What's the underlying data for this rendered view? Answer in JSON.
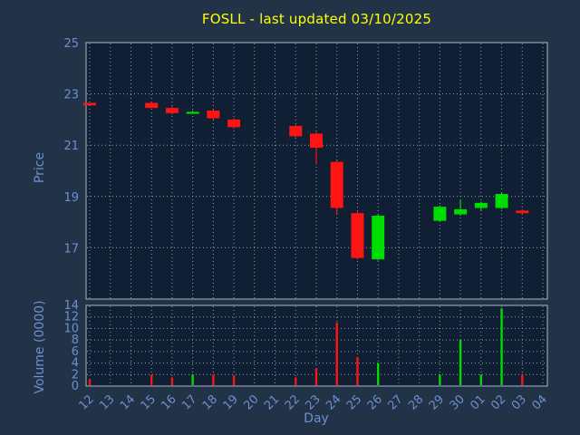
{
  "title": "FOSLL - last updated 03/10/2025",
  "colors": {
    "background": "#223348",
    "plot_bg": "#101f33",
    "title": "#ffff00",
    "axis_label": "#6d8fcf",
    "tick_label": "#6d8fcf",
    "grid": "#8fa0b3",
    "border": "#aab8c6",
    "up": "#00db00",
    "down": "#ff1414"
  },
  "chart_data": {
    "type": "candlestick+volume",
    "title": "FOSLL - last updated 03/10/2025",
    "xlabel": "Day",
    "price_ylabel": "Price",
    "volume_ylabel": "Volume (0000)",
    "x_ticks": [
      "12",
      "13",
      "14",
      "15",
      "16",
      "17",
      "18",
      "19",
      "20",
      "21",
      "22",
      "23",
      "24",
      "25",
      "26",
      "27",
      "28",
      "29",
      "30",
      "01",
      "02",
      "03",
      "04"
    ],
    "price_ticks": [
      25,
      23,
      21,
      19,
      17
    ],
    "price_range": [
      15,
      25
    ],
    "volume_ticks": [
      14,
      12,
      10,
      8,
      6,
      4,
      2,
      0
    ],
    "volume_range": [
      0,
      14
    ],
    "grid": true,
    "candles": [
      {
        "day": "12",
        "open": 22.65,
        "close": 22.55,
        "high": 22.65,
        "low": 22.55,
        "dir": "down",
        "volume": 1.2
      },
      {
        "day": "15",
        "open": 22.65,
        "close": 22.45,
        "high": 22.7,
        "low": 22.45,
        "dir": "down",
        "volume": 2.0
      },
      {
        "day": "16",
        "open": 22.45,
        "close": 22.25,
        "high": 22.5,
        "low": 22.2,
        "dir": "down",
        "volume": 1.5
      },
      {
        "day": "17",
        "open": 22.3,
        "close": 22.3,
        "high": 22.35,
        "low": 22.25,
        "dir": "up",
        "volume": 2.0
      },
      {
        "day": "18",
        "open": 22.35,
        "close": 22.05,
        "high": 22.4,
        "low": 22.0,
        "dir": "down",
        "volume": 2.0
      },
      {
        "day": "19",
        "open": 22.0,
        "close": 21.7,
        "high": 22.05,
        "low": 21.65,
        "dir": "down",
        "volume": 1.8
      },
      {
        "day": "22",
        "open": 21.75,
        "close": 21.35,
        "high": 21.8,
        "low": 21.3,
        "dir": "down",
        "volume": 1.5
      },
      {
        "day": "23",
        "open": 21.45,
        "close": 20.9,
        "high": 21.5,
        "low": 20.25,
        "dir": "down",
        "volume": 3.0
      },
      {
        "day": "24",
        "open": 20.35,
        "close": 18.55,
        "high": 20.4,
        "low": 18.3,
        "dir": "down",
        "volume": 11.0
      },
      {
        "day": "25",
        "open": 18.35,
        "close": 16.6,
        "high": 18.45,
        "low": 16.55,
        "dir": "down",
        "volume": 5.0
      },
      {
        "day": "26",
        "open": 16.55,
        "close": 18.25,
        "high": 18.3,
        "low": 16.5,
        "dir": "up",
        "volume": 4.0
      },
      {
        "day": "29",
        "open": 18.05,
        "close": 18.6,
        "high": 18.65,
        "low": 18.0,
        "dir": "up",
        "volume": 2.0
      },
      {
        "day": "30",
        "open": 18.3,
        "close": 18.5,
        "high": 18.85,
        "low": 18.25,
        "dir": "up",
        "volume": 8.0
      },
      {
        "day": "01",
        "open": 18.55,
        "close": 18.75,
        "high": 18.8,
        "low": 18.45,
        "dir": "up",
        "volume": 2.0
      },
      {
        "day": "02",
        "open": 18.55,
        "close": 19.1,
        "high": 19.15,
        "low": 18.5,
        "dir": "up",
        "volume": 13.5
      },
      {
        "day": "03",
        "open": 18.45,
        "close": 18.35,
        "high": 18.5,
        "low": 18.3,
        "dir": "down",
        "volume": 2.0
      }
    ]
  }
}
